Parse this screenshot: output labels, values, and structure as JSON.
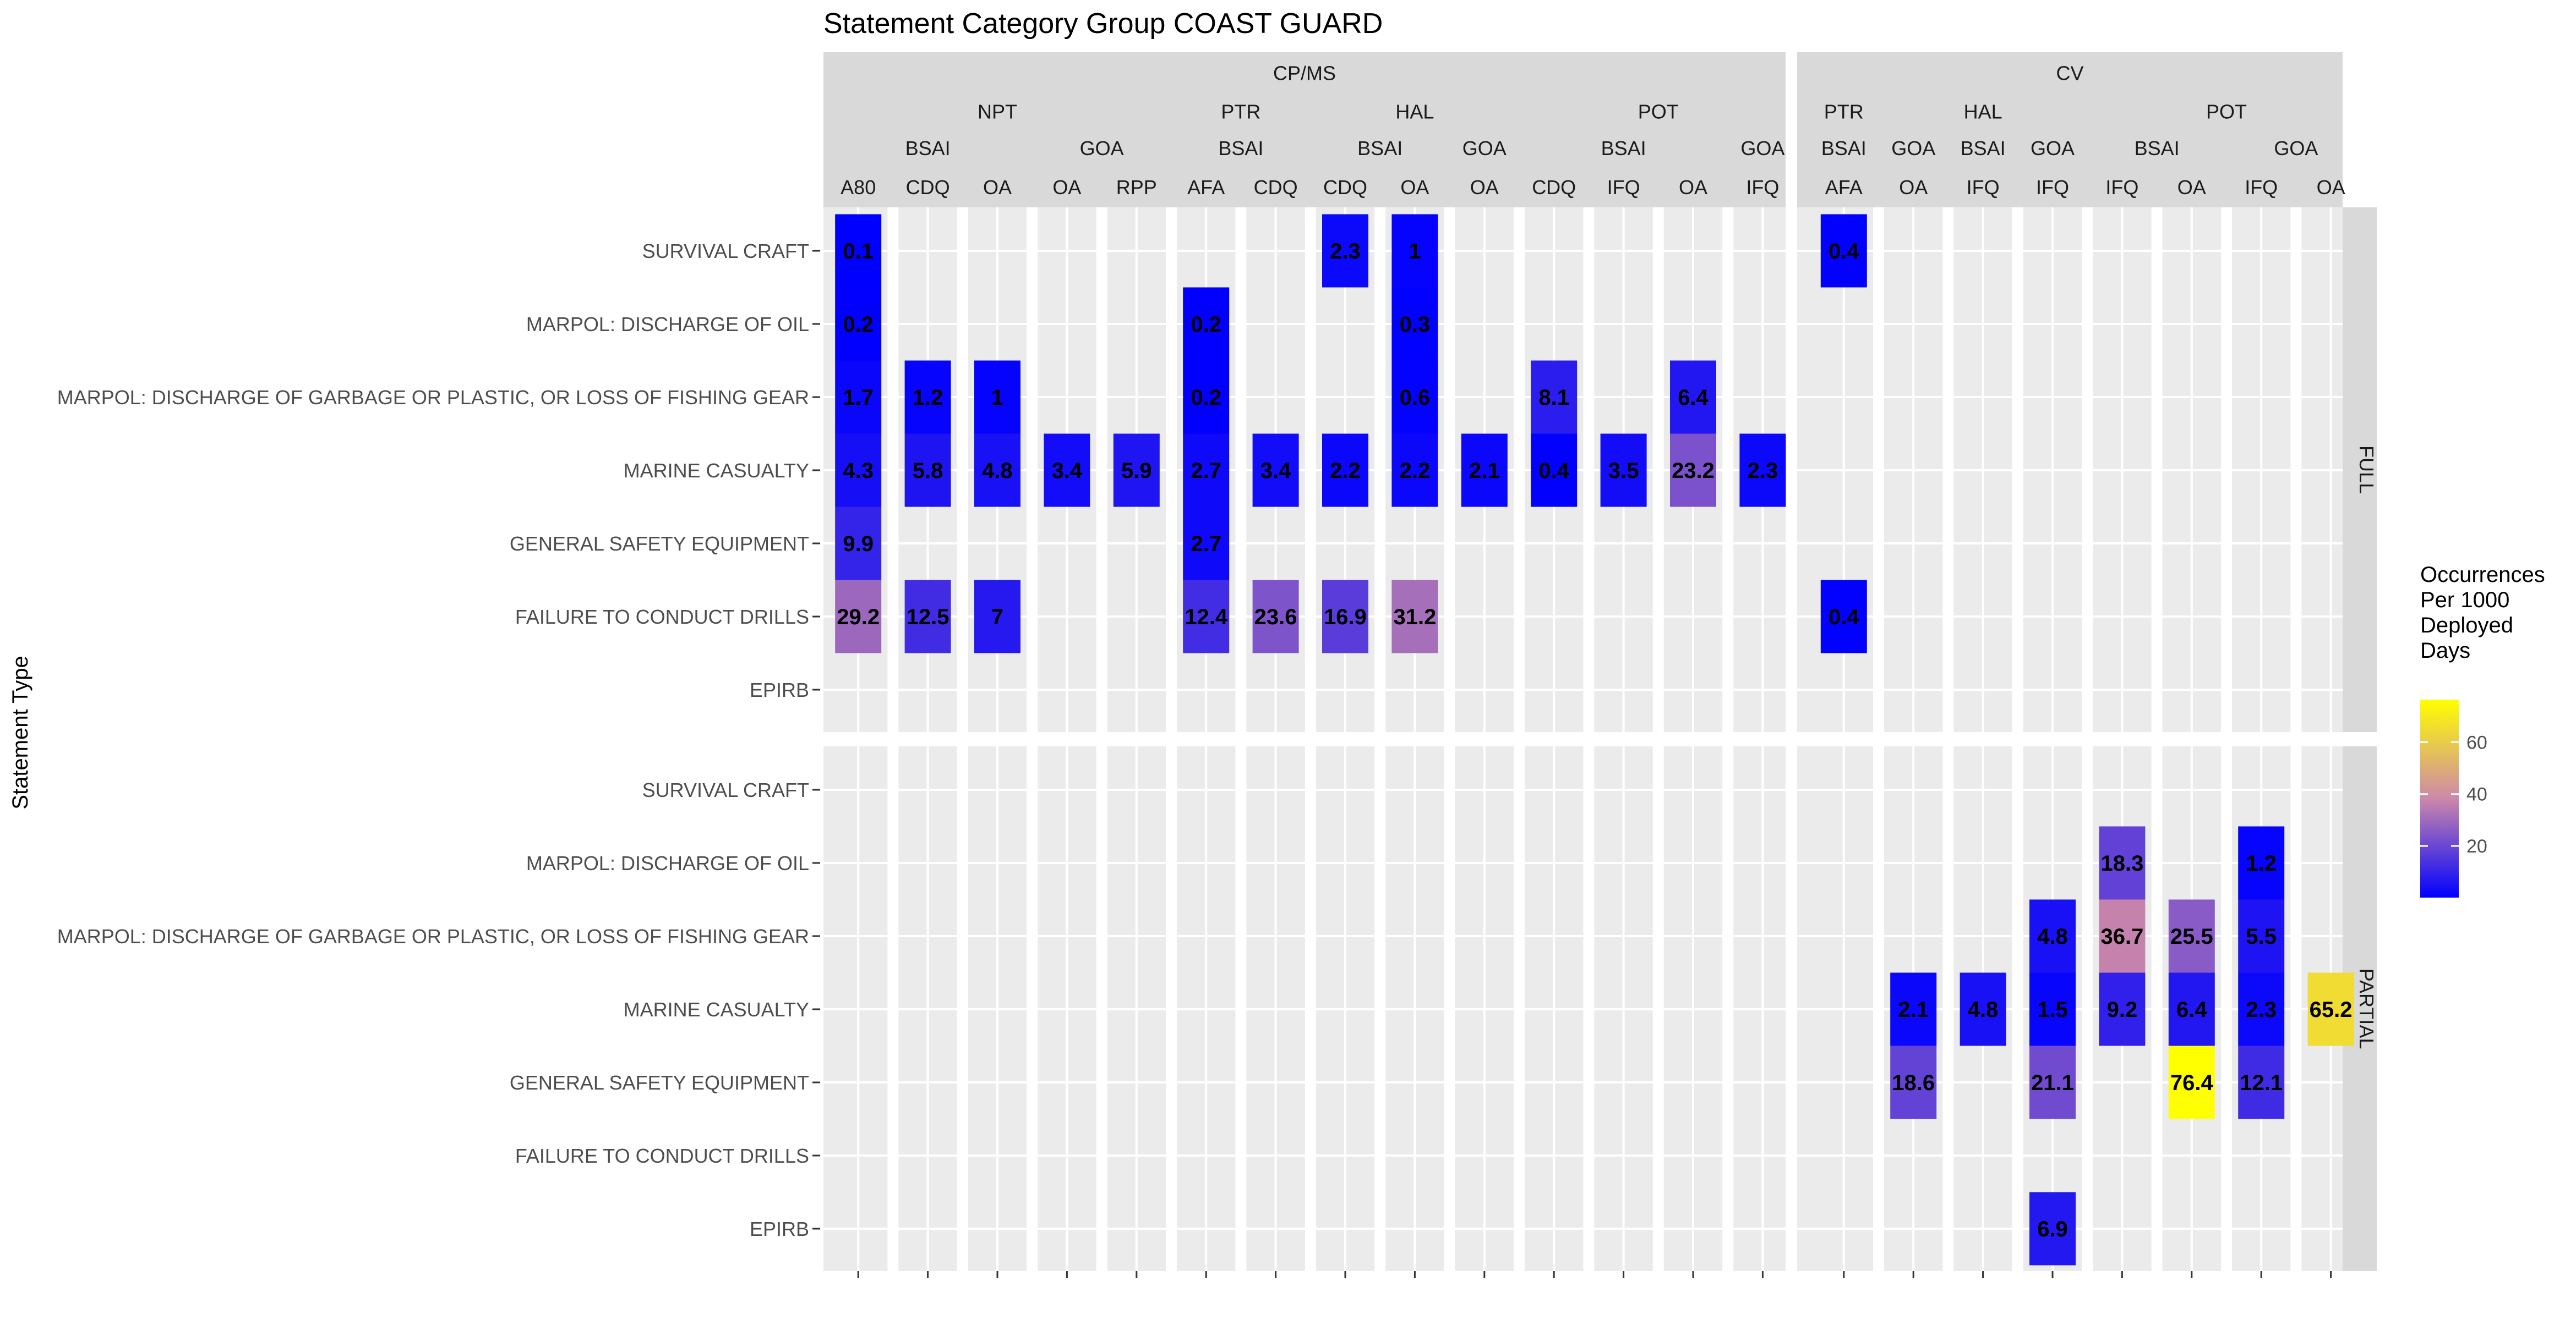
{
  "chart_data": {
    "type": "heatmap",
    "title": "Statement Category Group COAST GUARD",
    "ylabel": "Statement Type",
    "legend": {
      "title_lines": [
        "Occurrences",
        "Per 1000",
        "Deployed",
        "Days"
      ],
      "ticks": [
        20,
        40,
        60
      ],
      "range": [
        0.1,
        76.4
      ],
      "colors": [
        "#0000ff",
        "#cc88aa",
        "#ffff00"
      ],
      "placement": "right"
    },
    "y_categories": [
      "SURVIVAL CRAFT",
      "MARPOL: DISCHARGE OF OIL",
      "MARPOL: DISCHARGE OF GARBAGE OR PLASTIC, OR LOSS OF FISHING GEAR",
      "MARINE CASUALTY",
      "GENERAL SAFETY EQUIPMENT",
      "FAILURE TO CONDUCT DRILLS",
      "EPIRB"
    ],
    "row_panels": [
      "FULL",
      "PARTIAL"
    ],
    "level1": [
      {
        "label": "CP/MS",
        "span": [
          0,
          13
        ]
      },
      {
        "label": "CV",
        "span": [
          14,
          21
        ]
      }
    ],
    "level2": [
      {
        "label": "NPT",
        "span": [
          0,
          4
        ]
      },
      {
        "label": "PTR",
        "span": [
          5,
          6
        ]
      },
      {
        "label": "HAL",
        "span": [
          7,
          9
        ]
      },
      {
        "label": "POT",
        "span": [
          10,
          13
        ]
      },
      {
        "label": "PTR",
        "span": [
          14,
          14
        ]
      },
      {
        "label": "HAL",
        "span": [
          15,
          17
        ]
      },
      {
        "label": "POT",
        "span": [
          18,
          21
        ]
      }
    ],
    "level3": [
      {
        "label": "BSAI",
        "span": [
          0,
          2
        ]
      },
      {
        "label": "GOA",
        "span": [
          3,
          4
        ]
      },
      {
        "label": "BSAI",
        "span": [
          5,
          6
        ]
      },
      {
        "label": "BSAI",
        "span": [
          7,
          8
        ]
      },
      {
        "label": "GOA",
        "span": [
          9,
          9
        ]
      },
      {
        "label": "BSAI",
        "span": [
          10,
          12
        ]
      },
      {
        "label": "GOA",
        "span": [
          13,
          13
        ]
      },
      {
        "label": "BSAI",
        "span": [
          14,
          14
        ]
      },
      {
        "label": "GOA",
        "span": [
          15,
          15
        ]
      },
      {
        "label": "BSAI",
        "span": [
          16,
          16
        ]
      },
      {
        "label": "GOA",
        "span": [
          17,
          17
        ]
      },
      {
        "label": "BSAI",
        "span": [
          18,
          19
        ]
      },
      {
        "label": "GOA",
        "span": [
          20,
          21
        ]
      }
    ],
    "columns": [
      "A80",
      "CDQ",
      "OA",
      "OA",
      "RPP",
      "AFA",
      "CDQ",
      "CDQ",
      "OA",
      "OA",
      "CDQ",
      "IFQ",
      "OA",
      "IFQ",
      "AFA",
      "OA",
      "IFQ",
      "IFQ",
      "IFQ",
      "OA",
      "IFQ",
      "OA"
    ],
    "cells": [
      {
        "panel": 0,
        "row": 0,
        "col": 0,
        "value": 0.1
      },
      {
        "panel": 0,
        "row": 0,
        "col": 7,
        "value": 2.3
      },
      {
        "panel": 0,
        "row": 0,
        "col": 8,
        "value": 1
      },
      {
        "panel": 0,
        "row": 0,
        "col": 14,
        "value": 0.4
      },
      {
        "panel": 0,
        "row": 1,
        "col": 0,
        "value": 0.2
      },
      {
        "panel": 0,
        "row": 1,
        "col": 5,
        "value": 0.2
      },
      {
        "panel": 0,
        "row": 1,
        "col": 8,
        "value": 0.3
      },
      {
        "panel": 0,
        "row": 2,
        "col": 0,
        "value": 1.7
      },
      {
        "panel": 0,
        "row": 2,
        "col": 1,
        "value": 1.2
      },
      {
        "panel": 0,
        "row": 2,
        "col": 2,
        "value": 1
      },
      {
        "panel": 0,
        "row": 2,
        "col": 5,
        "value": 0.2
      },
      {
        "panel": 0,
        "row": 2,
        "col": 8,
        "value": 0.6
      },
      {
        "panel": 0,
        "row": 2,
        "col": 10,
        "value": 8.1
      },
      {
        "panel": 0,
        "row": 2,
        "col": 12,
        "value": 6.4
      },
      {
        "panel": 0,
        "row": 3,
        "col": 0,
        "value": 4.3
      },
      {
        "panel": 0,
        "row": 3,
        "col": 1,
        "value": 5.8
      },
      {
        "panel": 0,
        "row": 3,
        "col": 2,
        "value": 4.8
      },
      {
        "panel": 0,
        "row": 3,
        "col": 3,
        "value": 3.4
      },
      {
        "panel": 0,
        "row": 3,
        "col": 4,
        "value": 5.9
      },
      {
        "panel": 0,
        "row": 3,
        "col": 5,
        "value": 2.7
      },
      {
        "panel": 0,
        "row": 3,
        "col": 6,
        "value": 3.4
      },
      {
        "panel": 0,
        "row": 3,
        "col": 7,
        "value": 2.2
      },
      {
        "panel": 0,
        "row": 3,
        "col": 8,
        "value": 2.2
      },
      {
        "panel": 0,
        "row": 3,
        "col": 9,
        "value": 2.1
      },
      {
        "panel": 0,
        "row": 3,
        "col": 10,
        "value": 0.4
      },
      {
        "panel": 0,
        "row": 3,
        "col": 11,
        "value": 3.5
      },
      {
        "panel": 0,
        "row": 3,
        "col": 12,
        "value": 23.2
      },
      {
        "panel": 0,
        "row": 3,
        "col": 13,
        "value": 2.3
      },
      {
        "panel": 0,
        "row": 4,
        "col": 0,
        "value": 9.9
      },
      {
        "panel": 0,
        "row": 4,
        "col": 5,
        "value": 2.7
      },
      {
        "panel": 0,
        "row": 5,
        "col": 0,
        "value": 29.2
      },
      {
        "panel": 0,
        "row": 5,
        "col": 1,
        "value": 12.5
      },
      {
        "panel": 0,
        "row": 5,
        "col": 2,
        "value": 7
      },
      {
        "panel": 0,
        "row": 5,
        "col": 5,
        "value": 12.4
      },
      {
        "panel": 0,
        "row": 5,
        "col": 6,
        "value": 23.6
      },
      {
        "panel": 0,
        "row": 5,
        "col": 7,
        "value": 16.9
      },
      {
        "panel": 0,
        "row": 5,
        "col": 8,
        "value": 31.2
      },
      {
        "panel": 0,
        "row": 5,
        "col": 14,
        "value": 0.4
      },
      {
        "panel": 1,
        "row": 1,
        "col": 18,
        "value": 18.3
      },
      {
        "panel": 1,
        "row": 1,
        "col": 20,
        "value": 1.2
      },
      {
        "panel": 1,
        "row": 2,
        "col": 17,
        "value": 4.8
      },
      {
        "panel": 1,
        "row": 2,
        "col": 18,
        "value": 36.7
      },
      {
        "panel": 1,
        "row": 2,
        "col": 19,
        "value": 25.5
      },
      {
        "panel": 1,
        "row": 2,
        "col": 20,
        "value": 5.5
      },
      {
        "panel": 1,
        "row": 3,
        "col": 15,
        "value": 2.1
      },
      {
        "panel": 1,
        "row": 3,
        "col": 16,
        "value": 4.8
      },
      {
        "panel": 1,
        "row": 3,
        "col": 17,
        "value": 1.5
      },
      {
        "panel": 1,
        "row": 3,
        "col": 18,
        "value": 9.2
      },
      {
        "panel": 1,
        "row": 3,
        "col": 19,
        "value": 6.4
      },
      {
        "panel": 1,
        "row": 3,
        "col": 20,
        "value": 2.3
      },
      {
        "panel": 1,
        "row": 3,
        "col": 21,
        "value": 65.2
      },
      {
        "panel": 1,
        "row": 4,
        "col": 15,
        "value": 18.6
      },
      {
        "panel": 1,
        "row": 4,
        "col": 17,
        "value": 21.1
      },
      {
        "panel": 1,
        "row": 4,
        "col": 19,
        "value": 76.4
      },
      {
        "panel": 1,
        "row": 4,
        "col": 20,
        "value": 12.1
      },
      {
        "panel": 1,
        "row": 6,
        "col": 17,
        "value": 6.9
      }
    ]
  }
}
